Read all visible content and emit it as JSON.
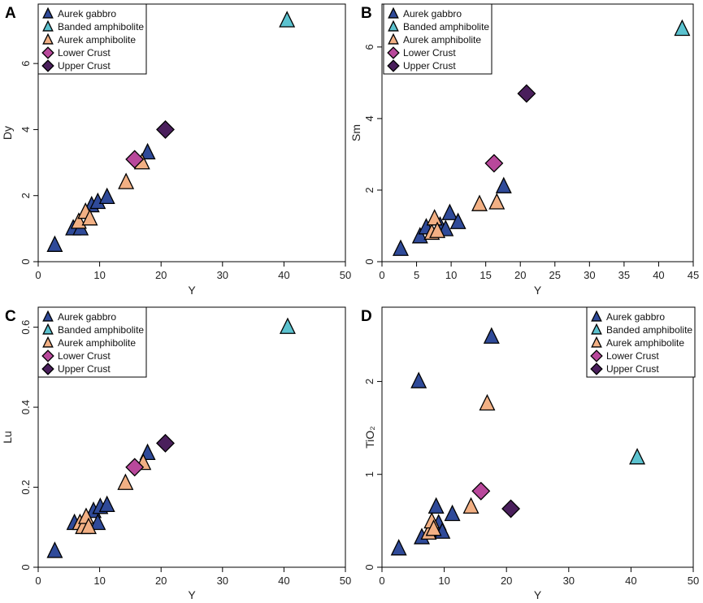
{
  "figure": {
    "legend_entries": [
      {
        "label": "Aurek gabbro",
        "marker": "triangle",
        "color": "#2f4a99"
      },
      {
        "label": "Banded amphibolite",
        "marker": "triangle",
        "color": "#5bc2cf"
      },
      {
        "label": "Aurek amphibolite",
        "marker": "triangle",
        "color": "#f2b084"
      },
      {
        "label": "Lower Crust",
        "marker": "diamond",
        "color": "#b8489b"
      },
      {
        "label": "Upper Crust",
        "marker": "diamond",
        "color": "#4a1f5c"
      }
    ]
  },
  "chart_data": [
    {
      "panel": "A",
      "type": "scatter",
      "xlabel": "Y",
      "ylabel": "Dy",
      "xlim": [
        0,
        50
      ],
      "ylim": [
        0,
        7.8
      ],
      "xticks": [
        "0",
        "10",
        "20",
        "30",
        "40",
        "50"
      ],
      "yticks": [
        "0",
        "2",
        "4",
        "6"
      ],
      "legend_position": "top-left",
      "series": [
        {
          "name": "Aurek gabbro",
          "points": [
            [
              2.7,
              0.5
            ],
            [
              5.7,
              1.0
            ],
            [
              6.9,
              1.0
            ],
            [
              8.7,
              1.7
            ],
            [
              9.7,
              1.8
            ],
            [
              11.2,
              1.95
            ],
            [
              17.8,
              3.3
            ]
          ]
        },
        {
          "name": "Banded amphibolite",
          "points": [
            [
              40.5,
              7.3
            ]
          ]
        },
        {
          "name": "Aurek amphibolite",
          "points": [
            [
              6.6,
              1.2
            ],
            [
              7.7,
              1.5
            ],
            [
              8.4,
              1.3
            ],
            [
              14.3,
              2.4
            ],
            [
              16.9,
              3.0
            ]
          ]
        },
        {
          "name": "Lower Crust",
          "points": [
            [
              15.7,
              3.1
            ]
          ]
        },
        {
          "name": "Upper Crust",
          "points": [
            [
              20.7,
              4.0
            ]
          ]
        }
      ]
    },
    {
      "panel": "B",
      "type": "scatter",
      "xlabel": "Y",
      "ylabel": "Sm",
      "xlim": [
        0,
        45
      ],
      "ylim": [
        0,
        7.2
      ],
      "xticks": [
        "0",
        "5",
        "10",
        "15",
        "20",
        "25",
        "30",
        "35",
        "40",
        "45"
      ],
      "yticks": [
        "0",
        "2",
        "4",
        "6"
      ],
      "legend_position": "top-left",
      "series": [
        {
          "name": "Aurek gabbro",
          "points": [
            [
              2.7,
              0.35
            ],
            [
              5.5,
              0.7
            ],
            [
              6.4,
              0.95
            ],
            [
              8.4,
              1.0
            ],
            [
              9.2,
              0.9
            ],
            [
              9.8,
              1.35
            ],
            [
              11.0,
              1.1
            ],
            [
              17.6,
              2.1
            ]
          ]
        },
        {
          "name": "Banded amphibolite",
          "points": [
            [
              43.4,
              6.5
            ]
          ]
        },
        {
          "name": "Aurek amphibolite",
          "points": [
            [
              7.2,
              0.8
            ],
            [
              7.6,
              1.2
            ],
            [
              8.0,
              0.85
            ],
            [
              14.1,
              1.6
            ],
            [
              16.6,
              1.65
            ]
          ]
        },
        {
          "name": "Lower Crust",
          "points": [
            [
              16.2,
              2.75
            ]
          ]
        },
        {
          "name": "Upper Crust",
          "points": [
            [
              20.9,
              4.7
            ]
          ]
        }
      ]
    },
    {
      "panel": "C",
      "type": "scatter",
      "xlabel": "Y",
      "ylabel": "Lu",
      "xlim": [
        0,
        50
      ],
      "ylim": [
        0,
        0.65
      ],
      "xticks": [
        "0",
        "10",
        "20",
        "30",
        "40",
        "50"
      ],
      "yticks": [
        "0",
        "0.2",
        "0.4",
        "0.6"
      ],
      "legend_position": "top-left",
      "series": [
        {
          "name": "Aurek gabbro",
          "points": [
            [
              2.7,
              0.04
            ],
            [
              5.9,
              0.11
            ],
            [
              9.0,
              0.14
            ],
            [
              9.7,
              0.11
            ],
            [
              10.1,
              0.15
            ],
            [
              11.2,
              0.155
            ],
            [
              17.8,
              0.285
            ]
          ]
        },
        {
          "name": "Banded amphibolite",
          "points": [
            [
              40.6,
              0.6
            ]
          ]
        },
        {
          "name": "Aurek amphibolite",
          "points": [
            [
              6.8,
              0.11
            ],
            [
              7.3,
              0.1
            ],
            [
              7.8,
              0.125
            ],
            [
              8.2,
              0.1
            ],
            [
              14.2,
              0.21
            ],
            [
              17.1,
              0.26
            ]
          ]
        },
        {
          "name": "Lower Crust",
          "points": [
            [
              15.7,
              0.25
            ]
          ]
        },
        {
          "name": "Upper Crust",
          "points": [
            [
              20.7,
              0.31
            ]
          ]
        }
      ]
    },
    {
      "panel": "D",
      "type": "scatter",
      "xlabel": "Y",
      "ylabel": "TiO₂",
      "xlim": [
        0,
        50
      ],
      "ylim": [
        0,
        2.8
      ],
      "xticks": [
        "0",
        "10",
        "20",
        "30",
        "40",
        "50"
      ],
      "yticks": [
        "0",
        "1",
        "2"
      ],
      "legend_position": "top-right",
      "series": [
        {
          "name": "Aurek gabbro",
          "points": [
            [
              2.7,
              0.2
            ],
            [
              5.9,
              2.0
            ],
            [
              6.4,
              0.32
            ],
            [
              7.8,
              0.4
            ],
            [
              8.7,
              0.65
            ],
            [
              9.1,
              0.47
            ],
            [
              9.7,
              0.38
            ],
            [
              11.3,
              0.57
            ],
            [
              17.6,
              2.48
            ]
          ]
        },
        {
          "name": "Banded amphibolite",
          "points": [
            [
              41.0,
              1.18
            ]
          ]
        },
        {
          "name": "Aurek amphibolite",
          "points": [
            [
              7.5,
              0.37
            ],
            [
              8.0,
              0.49
            ],
            [
              8.3,
              0.41
            ],
            [
              14.3,
              0.65
            ],
            [
              16.9,
              1.76
            ]
          ]
        },
        {
          "name": "Lower Crust",
          "points": [
            [
              15.9,
              0.82
            ]
          ]
        },
        {
          "name": "Upper Crust",
          "points": [
            [
              20.7,
              0.63
            ]
          ]
        }
      ]
    }
  ]
}
